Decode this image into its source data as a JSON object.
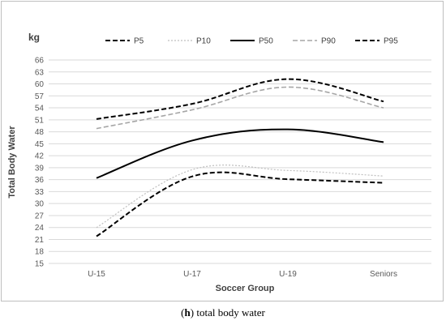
{
  "chart_data": {
    "type": "line",
    "unit_label": "kg",
    "xlabel": "Soccer Group",
    "ylabel": "Total Body Water",
    "categories": [
      "U-15",
      "U-17",
      "U-19",
      "Seniors"
    ],
    "ylim": [
      15,
      66
    ],
    "yticks": [
      15,
      18,
      21,
      24,
      27,
      30,
      33,
      36,
      39,
      42,
      45,
      48,
      51,
      54,
      57,
      60,
      63,
      66
    ],
    "grid": true,
    "legend_position": "top",
    "series": [
      {
        "name": "P5",
        "values": [
          21.8,
          36.8,
          36.1,
          35.2
        ],
        "color": "#000000",
        "style": "dashed"
      },
      {
        "name": "P10",
        "values": [
          24.0,
          38.5,
          38.3,
          36.9
        ],
        "color": "#bfbfbf",
        "style": "dotted"
      },
      {
        "name": "P50",
        "values": [
          36.4,
          45.8,
          48.6,
          45.4
        ],
        "color": "#000000",
        "style": "solid"
      },
      {
        "name": "P90",
        "values": [
          48.8,
          53.5,
          59.2,
          54.0
        ],
        "color": "#a6a6a6",
        "style": "dashed"
      },
      {
        "name": "P95",
        "values": [
          51.2,
          55.0,
          61.2,
          55.6
        ],
        "color": "#000000",
        "style": "dashed"
      }
    ]
  },
  "caption": {
    "letter": "h",
    "open": "(",
    "close": ")",
    "text": " total body water"
  }
}
